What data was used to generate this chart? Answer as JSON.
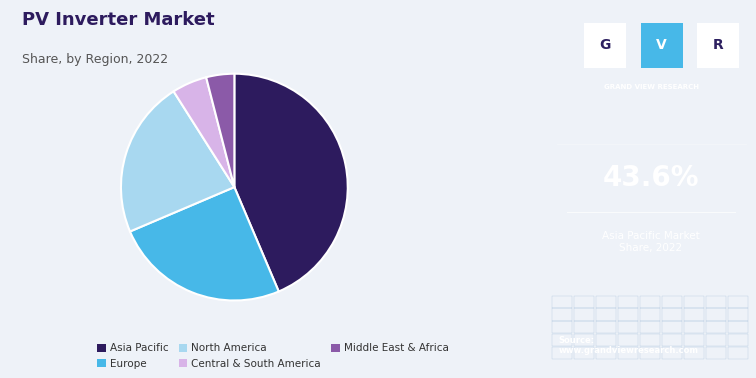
{
  "title": "PV Inverter Market",
  "subtitle": "Share, by Region, 2022",
  "slices": [
    43.6,
    25.0,
    22.4,
    5.0,
    4.0
  ],
  "labels": [
    "Asia Pacific",
    "Europe",
    "North America",
    "Central & South America",
    "Middle East & Africa"
  ],
  "colors": [
    "#2d1b5e",
    "#47b8e8",
    "#a8d8f0",
    "#d8b4e8",
    "#8b5aa8"
  ],
  "startangle": 90,
  "highlight_value": "43.6%",
  "highlight_label": "Asia Pacific Market\nShare, 2022",
  "source_text": "Source:\nwww.grandviewresearch.com",
  "sidebar_bg": "#2d2060",
  "main_bg": "#eef2f8",
  "title_color": "#2d1b5e",
  "subtitle_color": "#555555",
  "top_border_color": "#7ec8e3",
  "gvr_label": "GRAND VIEW RESEARCH"
}
